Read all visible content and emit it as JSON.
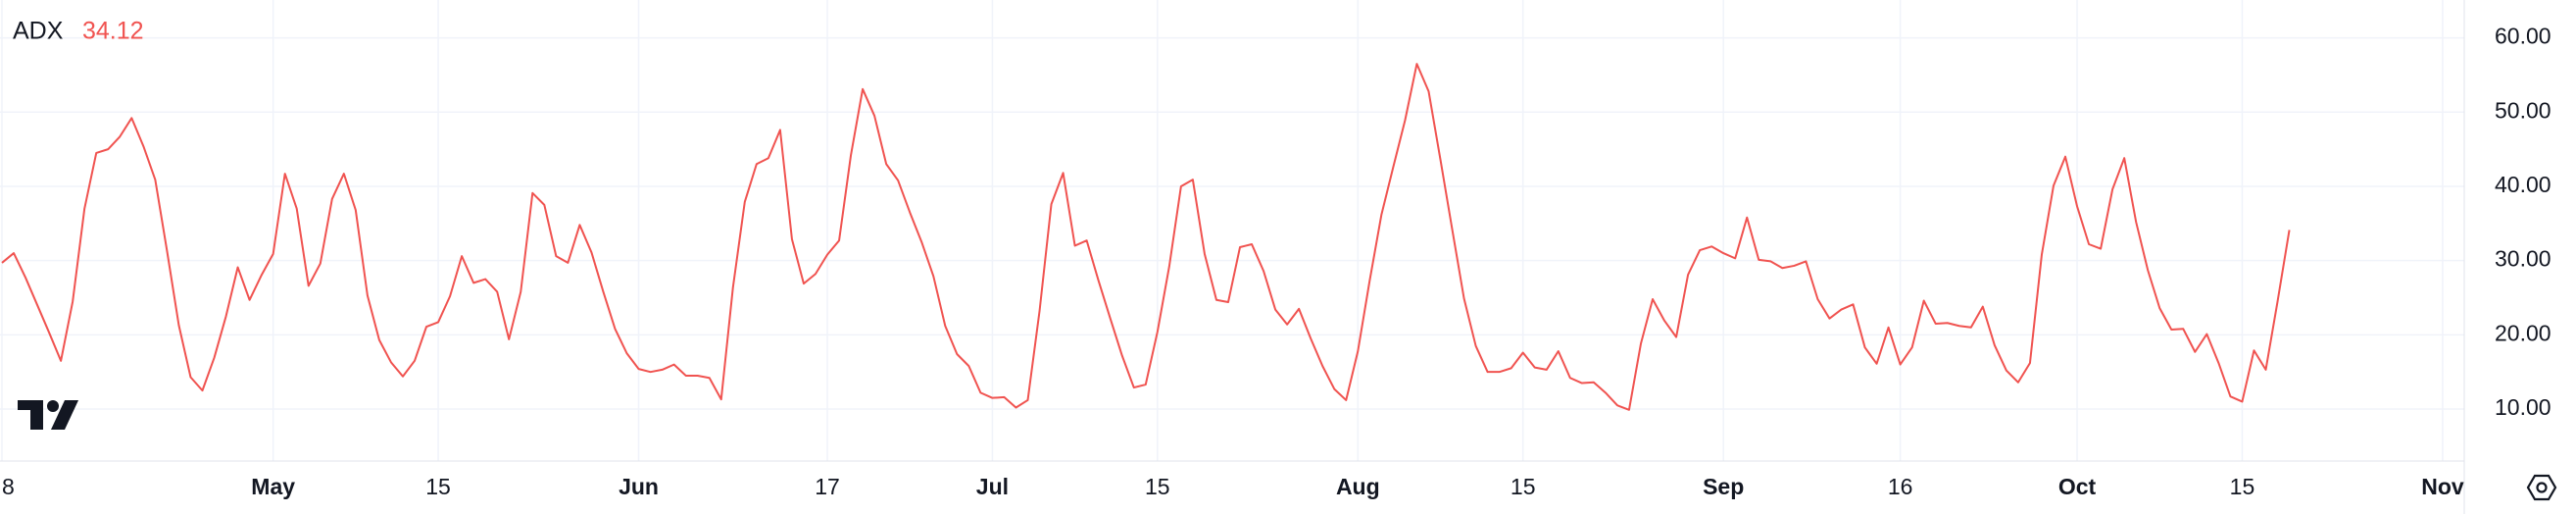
{
  "chart_data": {
    "type": "line",
    "categories": [
      "8",
      null,
      null,
      null,
      null,
      null,
      null,
      null,
      null,
      null,
      null,
      null,
      null,
      null,
      null,
      null,
      null,
      null,
      null,
      null,
      null,
      null,
      null,
      "May",
      null,
      null,
      null,
      null,
      null,
      null,
      null,
      null,
      null,
      null,
      null,
      null,
      null,
      "15",
      null,
      null,
      null,
      null,
      null,
      null,
      null,
      null,
      null,
      null,
      null,
      null,
      null,
      null,
      null,
      null,
      "Jun",
      null,
      null,
      null,
      null,
      null,
      null,
      null,
      null,
      null,
      null,
      null,
      null,
      null,
      null,
      null,
      "17",
      null,
      null,
      null,
      null,
      null,
      null,
      null,
      null,
      null,
      null,
      null,
      null,
      null,
      "Jul",
      null,
      null,
      null,
      null,
      null,
      null,
      null,
      null,
      null,
      null,
      null,
      null,
      null,
      "15",
      null,
      null,
      null,
      null,
      null,
      null,
      null,
      null,
      null,
      null,
      null,
      null,
      null,
      null,
      null,
      null,
      "Aug",
      null,
      null,
      null,
      null,
      null,
      null,
      null,
      null,
      null,
      null,
      null,
      null,
      null,
      "15",
      null,
      null,
      null,
      null,
      null,
      null,
      null,
      null,
      null,
      null,
      null,
      null,
      null,
      null,
      null,
      null,
      "Sep",
      null,
      null,
      null,
      null,
      null,
      null,
      null,
      null,
      null,
      null,
      null,
      null,
      null,
      null,
      "16",
      null,
      null,
      null,
      null,
      null,
      null,
      null,
      null,
      null,
      null,
      null,
      null,
      null,
      null,
      "Oct",
      null,
      null,
      null,
      null,
      null,
      null,
      null,
      null,
      null,
      null,
      null,
      null,
      null,
      "15",
      null,
      null,
      null,
      null,
      null,
      null,
      null,
      null,
      null,
      null,
      null,
      null,
      null,
      null,
      null,
      null,
      "Nov",
      null
    ],
    "series": [
      {
        "name": "ADX",
        "color": "#f05350",
        "values": [
          29.7,
          31,
          27.7,
          24,
          20.3,
          16.5,
          24.5,
          37,
          44.5,
          45,
          46.7,
          49.2,
          45.4,
          40.9,
          31.3,
          21.3,
          14.3,
          12.5,
          16.9,
          22.5,
          29.1,
          24.7,
          28,
          30.9,
          41.7,
          37,
          26.6,
          29.6,
          38.3,
          41.7,
          36.8,
          25.3,
          19.3,
          16.3,
          14.4,
          16.5,
          21.1,
          21.7,
          25.2,
          30.6,
          27,
          27.5,
          25.8,
          19.4,
          25.8,
          39.1,
          37.5,
          30.6,
          29.7,
          34.8,
          31.1,
          25.8,
          20.8,
          17.5,
          15.4,
          15,
          15.3,
          16,
          14.5,
          14.5,
          14.2,
          11.3,
          26.4,
          37.9,
          43,
          43.8,
          47.6,
          32.9,
          26.9,
          28.2,
          30.8,
          32.7,
          44.2,
          53.1,
          49.5,
          43,
          40.8,
          36.5,
          32.5,
          27.9,
          21.2,
          17.4,
          15.8,
          12.2,
          11.5,
          11.6,
          10.2,
          11.2,
          23.2,
          37.6,
          41.8,
          32,
          32.7,
          27.3,
          22.2,
          17.2,
          12.9,
          13.3,
          20.4,
          29.2,
          40,
          40.9,
          30.9,
          24.7,
          24.4,
          31.8,
          32.2,
          28.6,
          23.4,
          21.4,
          23.5,
          19.5,
          15.8,
          12.7,
          11.2,
          17.8,
          27.3,
          36.2,
          42.6,
          48.9,
          56.5,
          52.8,
          43.6,
          34.2,
          24.9,
          18.5,
          15,
          15,
          15.5,
          17.6,
          15.6,
          15.3,
          17.8,
          14.2,
          13.5,
          13.6,
          12.2,
          10.5,
          9.9,
          18.8,
          24.8,
          21.9,
          19.7,
          28.1,
          31.4,
          31.9,
          31,
          30.3,
          35.8,
          30.1,
          29.9,
          29,
          29.3,
          29.9,
          24.8,
          22.2,
          23.4,
          24.1,
          18.3,
          16.1,
          21,
          16,
          18.3,
          24.6,
          21.5,
          21.6,
          21.2,
          21,
          23.8,
          18.6,
          15.2,
          13.6,
          16.2,
          30.8,
          40.1,
          44,
          37.3,
          32.2,
          31.6,
          39.6,
          43.8,
          35.2,
          28.7,
          23.6,
          20.7,
          20.8,
          17.7,
          20.1,
          16.2,
          11.7,
          11,
          17.9,
          15.3,
          24.5,
          34.12,
          null,
          null,
          null,
          null,
          null,
          null,
          null,
          null,
          null,
          null,
          null,
          null,
          null,
          null
        ]
      }
    ],
    "ylim": [
      3,
      65.1
    ],
    "yticks": [
      {
        "value": 10,
        "label": "10.00"
      },
      {
        "value": 20,
        "label": "20.00"
      },
      {
        "value": 30,
        "label": "30.00"
      },
      {
        "value": 40,
        "label": "40.00"
      },
      {
        "value": 50,
        "label": "50.00"
      },
      {
        "value": 60,
        "label": "60.00"
      }
    ],
    "grid": true
  }
}
